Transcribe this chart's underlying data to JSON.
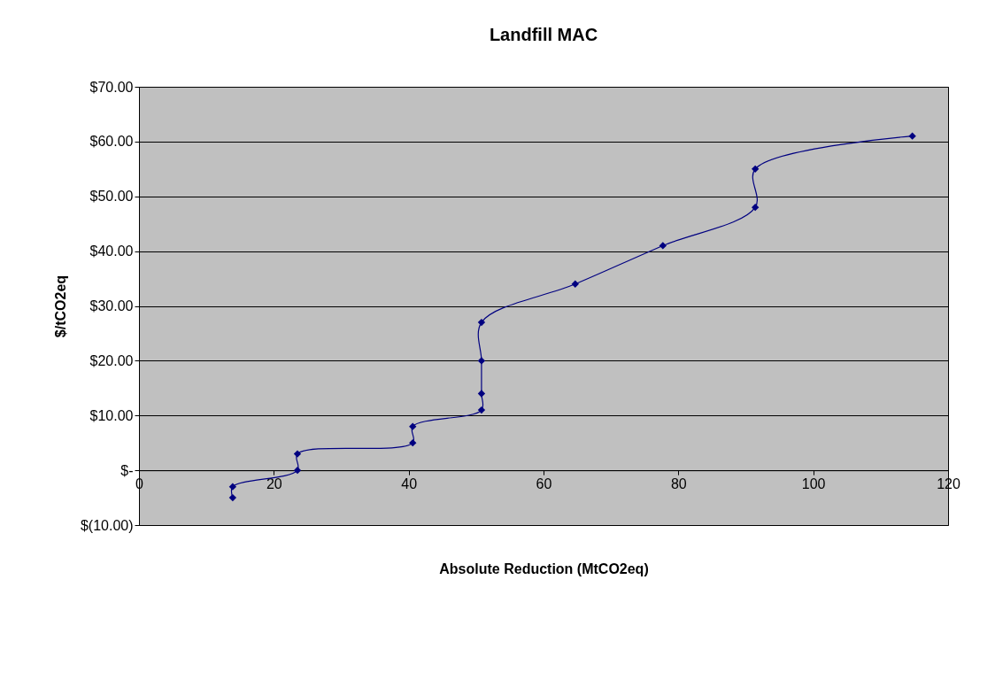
{
  "chart_data": {
    "type": "line",
    "title": "Landfill MAC",
    "xlabel": "Absolute Reduction (MtCO2eq)",
    "ylabel": "$/tCO2eq",
    "series": [
      {
        "color": "#000080",
        "x": [
          13.9,
          13.9,
          23.5,
          23.5,
          40.6,
          40.6,
          50.8,
          50.8,
          50.8,
          50.8,
          64.7,
          77.7,
          91.4,
          91.4,
          114.7
        ],
        "values": [
          -5,
          -3,
          0,
          3,
          5,
          8,
          11,
          14,
          20,
          27,
          34,
          41,
          48,
          55,
          61
        ]
      }
    ],
    "xlim": [
      0,
      120
    ],
    "xticks": [
      0,
      20,
      40,
      60,
      80,
      100,
      120
    ],
    "ylim": [
      -10,
      70
    ],
    "yticks": [
      {
        "value": -10,
        "label": "$(10.00)"
      },
      {
        "value": 0,
        "label": "$-"
      },
      {
        "value": 10,
        "label": "$10.00"
      },
      {
        "value": 20,
        "label": "$20.00"
      },
      {
        "value": 30,
        "label": "$30.00"
      },
      {
        "value": 40,
        "label": "$40.00"
      },
      {
        "value": 50,
        "label": "$50.00"
      },
      {
        "value": 60,
        "label": "$60.00"
      },
      {
        "value": 70,
        "label": "$70.00"
      }
    ],
    "grid": "y",
    "marker": "diamond",
    "line_style": "solid"
  }
}
